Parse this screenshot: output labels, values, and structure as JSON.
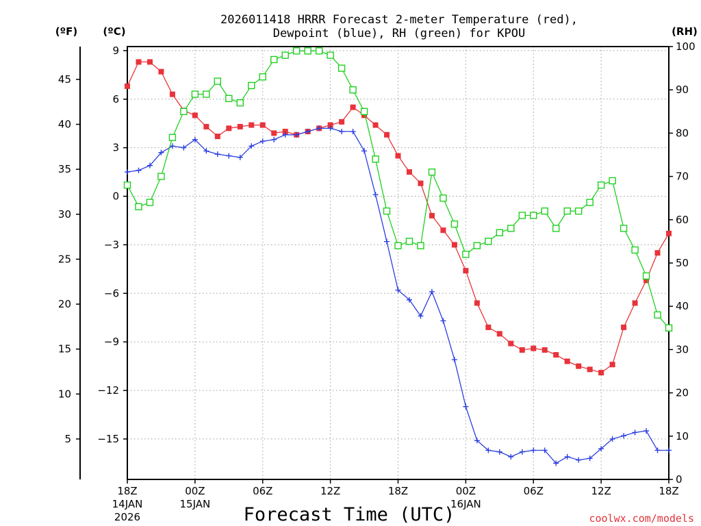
{
  "chart_data": {
    "type": "line",
    "title_line1": "2026011418 HRRR Forecast 2-meter Temperature (red),",
    "title_line2": "Dewpoint (blue), RH (green) for KPOU",
    "xlabel": "Forecast Time (UTC)",
    "credit": "coolwx.com/models",
    "unit_f": "(ºF)",
    "unit_c": "(ºC)",
    "unit_rh": "(RH)",
    "x_range": [
      0,
      48
    ],
    "c_range": [
      -17.5,
      9.25
    ],
    "rh_range": [
      0,
      100
    ],
    "c_ticks": [
      "9",
      "6",
      "3",
      "0",
      "-3",
      "-6",
      "-9",
      "-12",
      "-15"
    ],
    "f_ticks": [
      "45",
      "40",
      "35",
      "30",
      "25",
      "20",
      "15",
      "10",
      "5"
    ],
    "rh_ticks": [
      "100",
      "90",
      "80",
      "70",
      "60",
      "50",
      "40",
      "30",
      "20",
      "10",
      "0"
    ],
    "x_ticks": [
      {
        "label": "18Z",
        "sub1": "14JAN",
        "sub2": "2026",
        "h": 0
      },
      {
        "label": "00Z",
        "sub1": "15JAN",
        "sub2": "",
        "h": 6
      },
      {
        "label": "06Z",
        "sub1": "",
        "sub2": "",
        "h": 12
      },
      {
        "label": "12Z",
        "sub1": "",
        "sub2": "",
        "h": 18
      },
      {
        "label": "18Z",
        "sub1": "",
        "sub2": "",
        "h": 24
      },
      {
        "label": "00Z",
        "sub1": "16JAN",
        "sub2": "",
        "h": 30
      },
      {
        "label": "06Z",
        "sub1": "",
        "sub2": "",
        "h": 36
      },
      {
        "label": "12Z",
        "sub1": "",
        "sub2": "",
        "h": 42
      },
      {
        "label": "18Z",
        "sub1": "",
        "sub2": "",
        "h": 48
      }
    ],
    "series": [
      {
        "name": "Temperature",
        "unit": "C",
        "color": "#e8333a",
        "marker": "filled-square",
        "values": [
          6.8,
          8.3,
          8.3,
          7.7,
          6.3,
          5.3,
          5.0,
          4.3,
          3.7,
          4.2,
          4.3,
          4.4,
          4.4,
          3.9,
          4.0,
          3.8,
          4.0,
          4.2,
          4.4,
          4.6,
          5.5,
          5.0,
          4.4,
          3.8,
          2.5,
          1.5,
          0.8,
          -1.2,
          -2.1,
          -3.0,
          -4.6,
          -6.6,
          -8.1,
          -8.5,
          -9.1,
          -9.5,
          -9.4,
          -9.5,
          -9.8,
          -10.2,
          -10.5,
          -10.7,
          -10.9,
          -10.4,
          -8.1,
          -6.6,
          -5.2,
          -3.5,
          -2.3
        ]
      },
      {
        "name": "Dewpoint",
        "unit": "C",
        "color": "#2b3fe0",
        "marker": "plus",
        "values": [
          1.5,
          1.6,
          1.9,
          2.7,
          3.1,
          3.0,
          3.5,
          2.8,
          2.6,
          2.5,
          2.4,
          3.1,
          3.4,
          3.5,
          3.8,
          3.8,
          4.0,
          4.2,
          4.2,
          4.0,
          4.0,
          2.8,
          0.1,
          -2.8,
          -5.8,
          -6.4,
          -7.4,
          -5.9,
          -7.7,
          -10.1,
          -13.0,
          -15.1,
          -15.7,
          -15.8,
          -16.1,
          -15.8,
          -15.7,
          -15.7,
          -16.5,
          -16.1,
          -16.3,
          -16.2,
          -15.6,
          -15.0,
          -14.8,
          -14.6,
          -14.5,
          -15.7,
          -15.7
        ]
      },
      {
        "name": "RH",
        "unit": "%",
        "color": "#1fd01f",
        "marker": "open-square",
        "values": [
          68,
          63,
          64,
          70,
          79,
          85,
          89,
          89,
          92,
          88,
          87,
          91,
          93,
          97,
          98,
          99,
          99,
          99,
          98,
          95,
          90,
          85,
          74,
          62,
          54,
          55,
          54,
          71,
          65,
          59,
          52,
          54,
          55,
          57,
          58,
          61,
          61,
          62,
          58,
          62,
          62,
          64,
          68,
          69,
          58,
          53,
          47,
          38,
          35
        ]
      }
    ]
  }
}
